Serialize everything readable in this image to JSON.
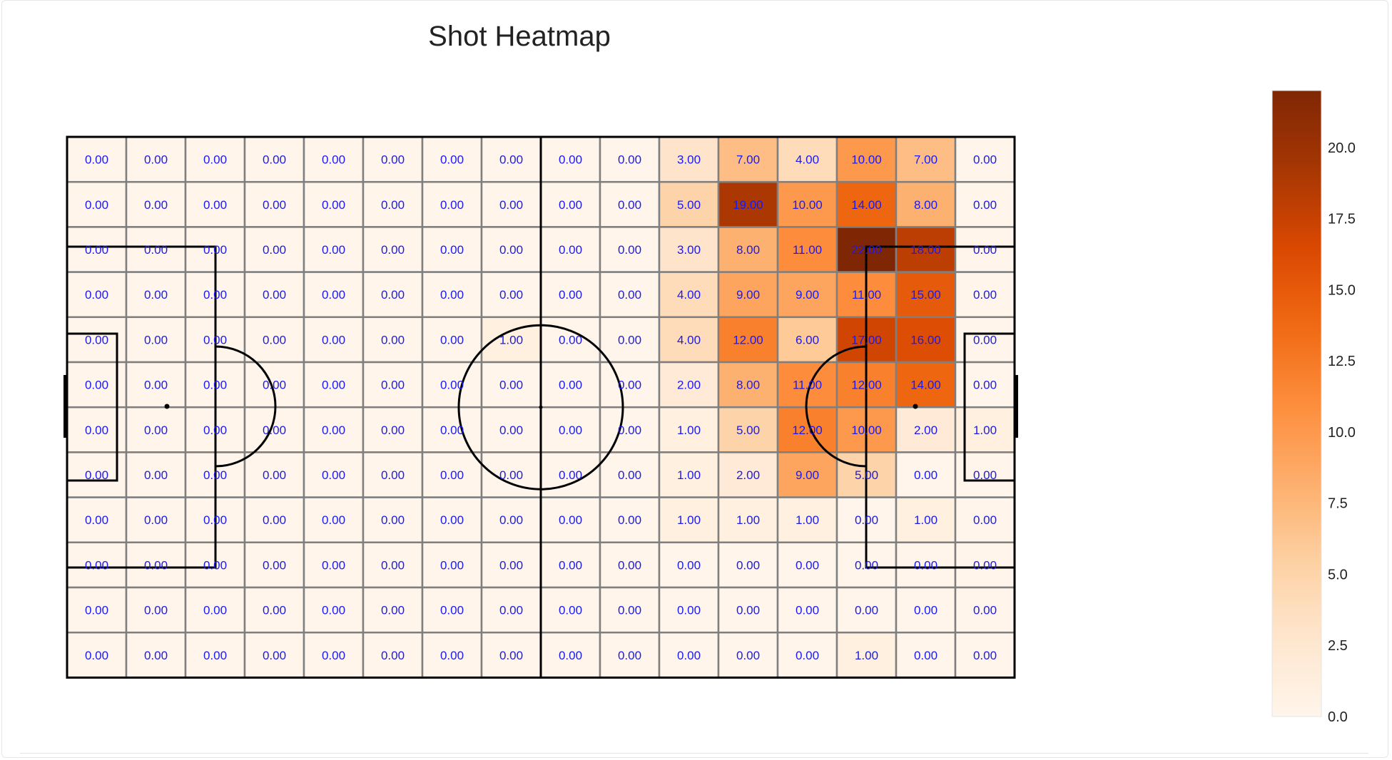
{
  "chart_data": {
    "type": "heatmap",
    "title": "Shot Heatmap",
    "rows": 12,
    "cols": 16,
    "colormap": "Oranges",
    "value_format": "0.00",
    "vmin": 0,
    "vmax": 22,
    "values": [
      [
        0,
        0,
        0,
        0,
        0,
        0,
        0,
        0,
        0,
        0,
        3,
        7,
        4,
        10,
        7,
        0
      ],
      [
        0,
        0,
        0,
        0,
        0,
        0,
        0,
        0,
        0,
        0,
        5,
        19,
        10,
        14,
        8,
        0
      ],
      [
        0,
        0,
        0,
        0,
        0,
        0,
        0,
        0,
        0,
        0,
        3,
        8,
        11,
        22,
        18,
        0
      ],
      [
        0,
        0,
        0,
        0,
        0,
        0,
        0,
        0,
        0,
        0,
        4,
        9,
        9,
        11,
        15,
        0
      ],
      [
        0,
        0,
        0,
        0,
        0,
        0,
        0,
        1,
        0,
        0,
        4,
        12,
        6,
        17,
        16,
        0
      ],
      [
        0,
        0,
        0,
        0,
        0,
        0,
        0,
        0,
        0,
        0,
        2,
        8,
        11,
        12,
        14,
        0
      ],
      [
        0,
        0,
        0,
        0,
        0,
        0,
        0,
        0,
        0,
        0,
        1,
        5,
        12,
        10,
        2,
        1
      ],
      [
        0,
        0,
        0,
        0,
        0,
        0,
        0,
        0,
        0,
        0,
        1,
        2,
        9,
        5,
        0,
        0
      ],
      [
        0,
        0,
        0,
        0,
        0,
        0,
        0,
        0,
        0,
        0,
        1,
        1,
        1,
        0,
        1,
        0
      ],
      [
        0,
        0,
        0,
        0,
        0,
        0,
        0,
        0,
        0,
        0,
        0,
        0,
        0,
        0,
        0,
        0
      ],
      [
        0,
        0,
        0,
        0,
        0,
        0,
        0,
        0,
        0,
        0,
        0,
        0,
        0,
        0,
        0,
        0
      ],
      [
        0,
        0,
        0,
        0,
        0,
        0,
        0,
        0,
        0,
        0,
        0,
        0,
        0,
        1,
        0,
        0
      ]
    ],
    "colorbar": {
      "ticks": [
        0,
        2.5,
        5,
        7.5,
        10,
        12.5,
        15,
        17.5,
        20
      ],
      "tick_labels": [
        "0.0",
        "2.5",
        "5.0",
        "7.5",
        "10.0",
        "12.5",
        "15.0",
        "17.5",
        "20.0"
      ]
    },
    "grid": true,
    "legend": "right (colorbar)"
  },
  "colors": {
    "cell_low": "#fff5eb",
    "cell_high": "#7f2704",
    "grid_line": "#7f7f7f",
    "pitch_line": "#000000",
    "label_text": "#1a1aee"
  }
}
